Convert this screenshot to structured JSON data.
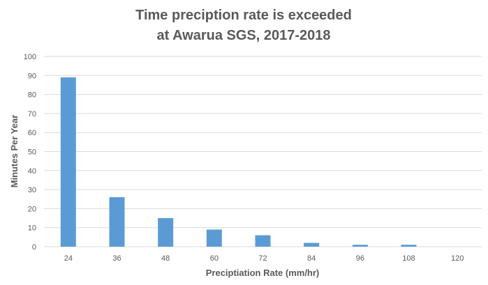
{
  "chart_data": {
    "type": "bar",
    "title_lines": [
      "Time preciption rate is exceeded",
      "at Awarua SGS, 2017-2018"
    ],
    "xlabel": "Preciptiation Rate (mm/hr)",
    "ylabel": "Minutes Per Year",
    "categories": [
      "24",
      "36",
      "48",
      "60",
      "72",
      "84",
      "96",
      "108",
      "120"
    ],
    "values": [
      89,
      26,
      15,
      9,
      6,
      2,
      1,
      1,
      0
    ],
    "ylim": [
      0,
      100
    ],
    "yticks": [
      "0",
      "10",
      "20",
      "30",
      "40",
      "50",
      "60",
      "70",
      "80",
      "90",
      "100"
    ],
    "grid": true,
    "bar_color": "#5B9BD5",
    "grid_color": "#D9D9D9"
  }
}
